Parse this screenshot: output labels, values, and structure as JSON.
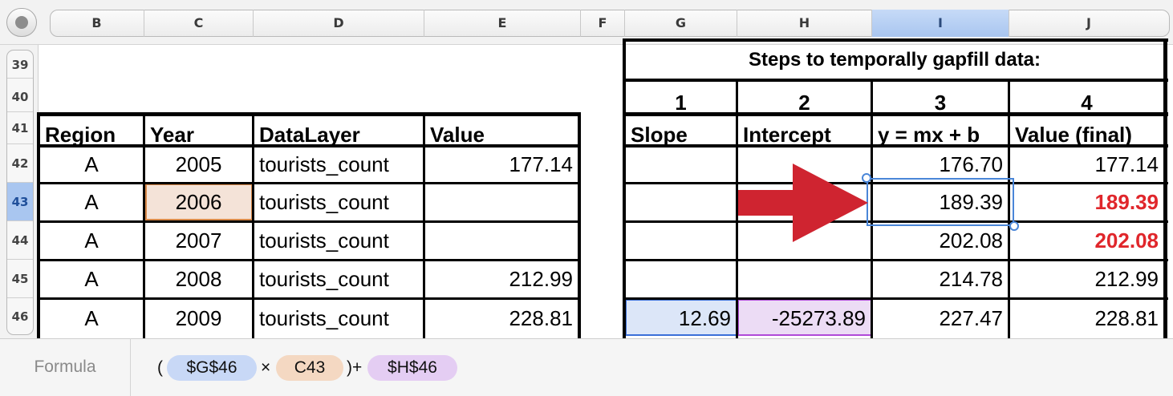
{
  "columns": [
    "B",
    "C",
    "D",
    "E",
    "F",
    "G",
    "H",
    "I",
    "J"
  ],
  "selected_column": "I",
  "rows": [
    "39",
    "40",
    "41",
    "42",
    "43",
    "44",
    "45",
    "46"
  ],
  "selected_row": "43",
  "steps_title": "Steps to temporally gapfill data:",
  "steps": [
    "1",
    "2",
    "3",
    "4"
  ],
  "left_headers": [
    "Region",
    "Year",
    "DataLayer",
    "Value"
  ],
  "right_headers": [
    "Slope",
    "Intercept",
    "y = mx + b",
    "Value (final)"
  ],
  "data_rows": [
    {
      "region": "A",
      "year": "2005",
      "layer": "tourists_count",
      "value": "177.14",
      "slope": "",
      "intercept": "",
      "ymxb": "176.70",
      "final": "177.14"
    },
    {
      "region": "A",
      "year": "2006",
      "layer": "tourists_count",
      "value": "",
      "slope": "",
      "intercept": "",
      "ymxb": "189.39",
      "final": "189.39"
    },
    {
      "region": "A",
      "year": "2007",
      "layer": "tourists_count",
      "value": "",
      "slope": "",
      "intercept": "",
      "ymxb": "202.08",
      "final": "202.08"
    },
    {
      "region": "A",
      "year": "2008",
      "layer": "tourists_count",
      "value": "212.99",
      "slope": "",
      "intercept": "",
      "ymxb": "214.78",
      "final": "212.99"
    },
    {
      "region": "A",
      "year": "2009",
      "layer": "tourists_count",
      "value": "228.81",
      "slope": "12.69",
      "intercept": "-25273.89",
      "ymxb": "227.47",
      "final": "228.81"
    }
  ],
  "arrow_icon": "red-arrow-right",
  "colors": {
    "accent_red": "#e0262b",
    "arrow_red": "#cf2430",
    "slope_ref": "#dce6f8",
    "year_ref": "#f4e3d8",
    "intercept_ref": "#ecdcf5"
  },
  "formula": {
    "label": "Formula",
    "open_paren": "(",
    "ref1": "$G$46",
    "times": "×",
    "ref2": "C43",
    "close_plus": ")+",
    "ref3": "$H$46"
  }
}
